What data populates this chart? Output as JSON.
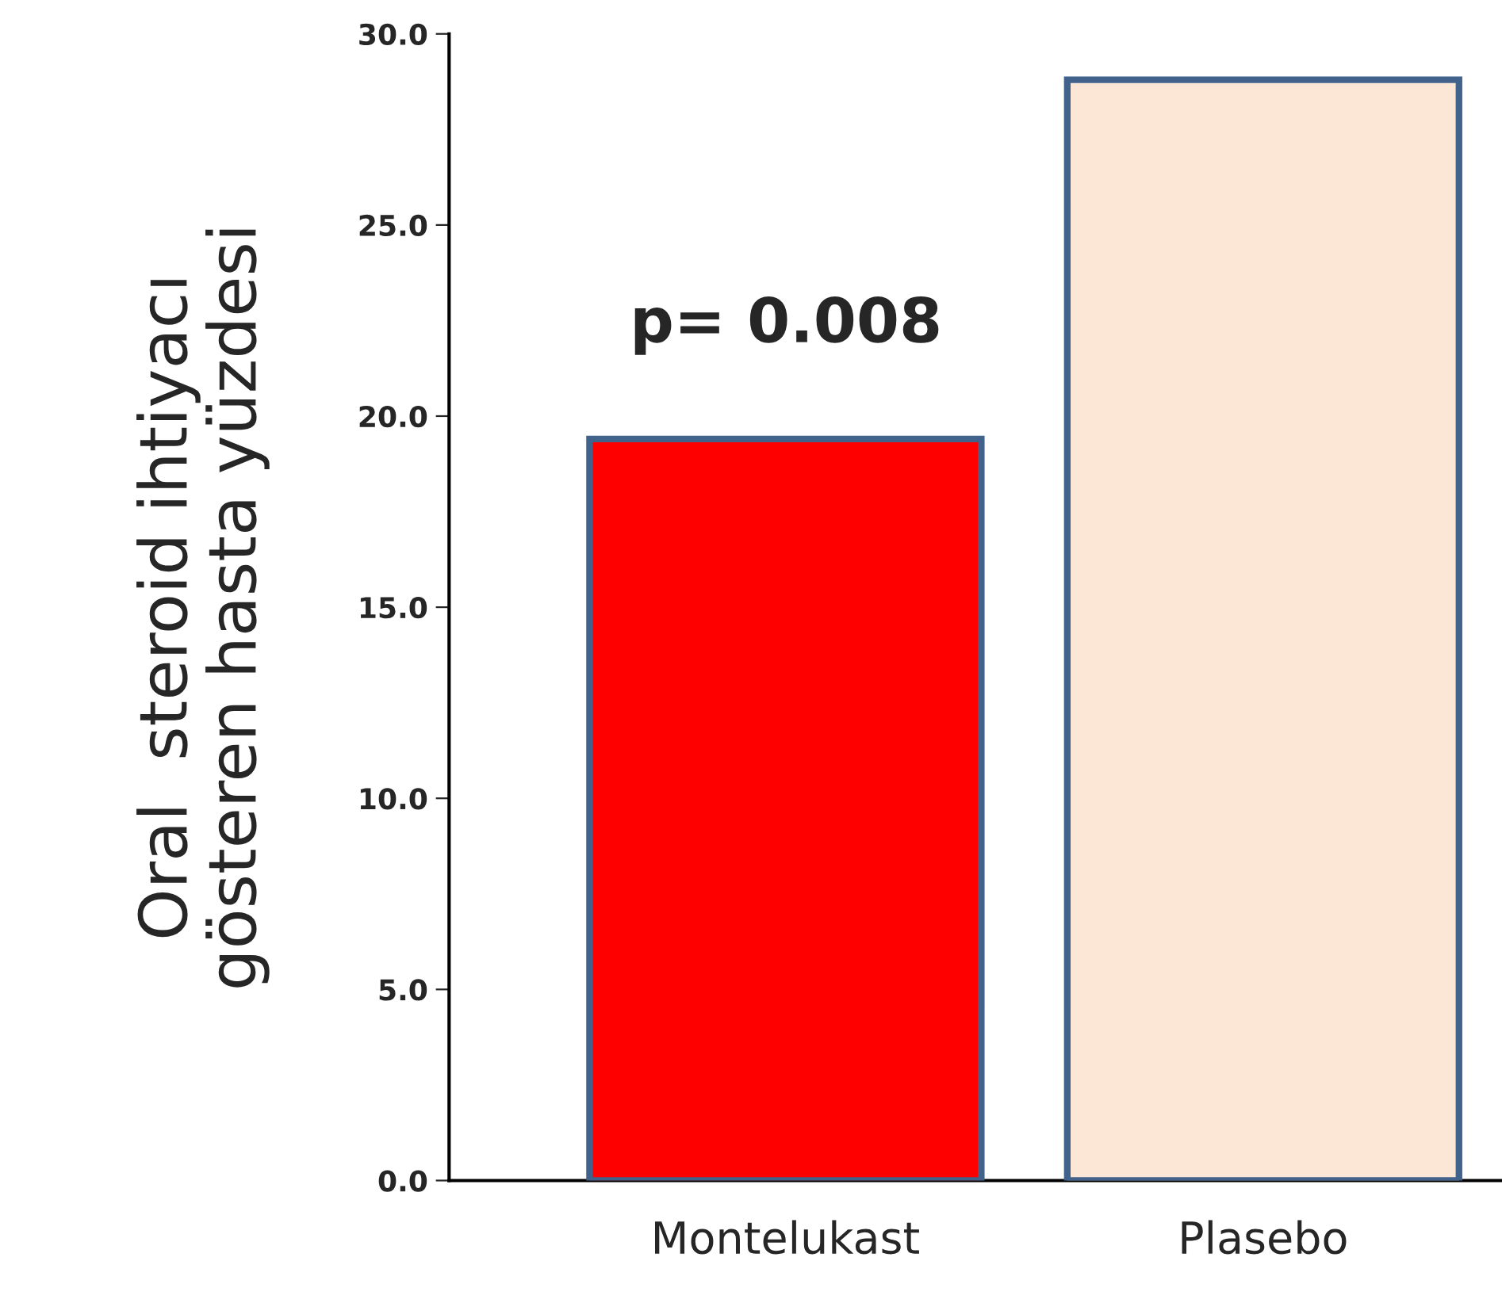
{
  "chart_data": {
    "type": "bar",
    "ylabel": "Oral  steroid ihtiyacı\ngösteren hasta yüzdesi",
    "categories": [
      "Montelukast",
      "Plasebo"
    ],
    "values": [
      19.4,
      28.8
    ],
    "colors": [
      "#ff0000",
      "#fce6d6"
    ],
    "ylim": [
      0,
      30
    ],
    "yticks": [
      {
        "value": 0,
        "label": "0.0"
      },
      {
        "value": 5,
        "label": "5.0"
      },
      {
        "value": 10,
        "label": "10.0"
      },
      {
        "value": 15,
        "label": "15.0"
      },
      {
        "value": 20,
        "label": "20.0"
      },
      {
        "value": 25,
        "label": "25.0"
      },
      {
        "value": 30,
        "label": "30.0"
      }
    ],
    "annotations": [
      "p= 0.008"
    ],
    "grid": false,
    "legend": false
  }
}
